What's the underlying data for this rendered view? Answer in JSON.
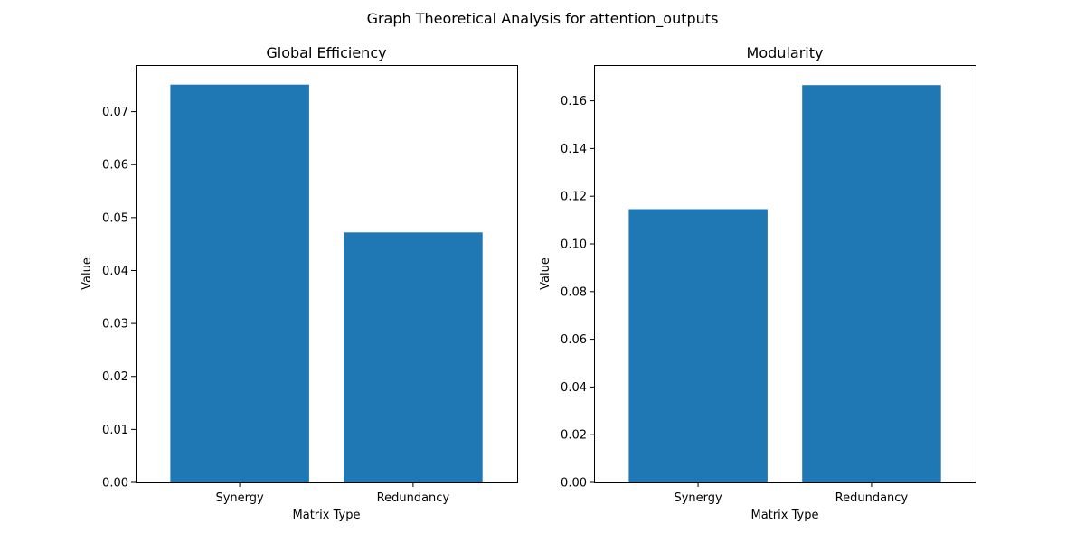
{
  "suptitle": "Graph Theoretical Analysis for attention_outputs",
  "colors": {
    "bar": "#1f77b4"
  },
  "chart_data": [
    {
      "type": "bar",
      "title": "Global Efficiency",
      "xlabel": "Matrix Type",
      "ylabel": "Value",
      "categories": [
        "Synergy",
        "Redundancy"
      ],
      "values": [
        0.0751,
        0.0472
      ],
      "ylim": [
        0,
        0.0788
      ],
      "yticks": [
        0.0,
        0.01,
        0.02,
        0.03,
        0.04,
        0.05,
        0.06,
        0.07
      ],
      "ytick_labels": [
        "0.00",
        "0.01",
        "0.02",
        "0.03",
        "0.04",
        "0.05",
        "0.06",
        "0.07"
      ],
      "grid": false,
      "legend": "none"
    },
    {
      "type": "bar",
      "title": "Modularity",
      "xlabel": "Matrix Type",
      "ylabel": "Value",
      "categories": [
        "Synergy",
        "Redundancy"
      ],
      "values": [
        0.1146,
        0.1666
      ],
      "ylim": [
        0,
        0.175
      ],
      "yticks": [
        0.0,
        0.02,
        0.04,
        0.06,
        0.08,
        0.1,
        0.12,
        0.14,
        0.16
      ],
      "ytick_labels": [
        "0.00",
        "0.02",
        "0.04",
        "0.06",
        "0.08",
        "0.10",
        "0.12",
        "0.14",
        "0.16"
      ],
      "grid": false,
      "legend": "none"
    }
  ]
}
